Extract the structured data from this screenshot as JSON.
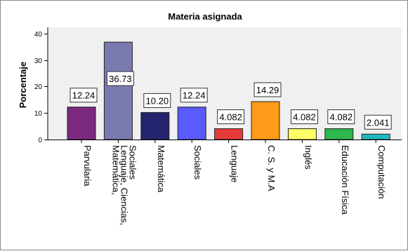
{
  "chart_data": {
    "type": "bar",
    "title": "Materia asignada",
    "xlabel": "",
    "ylabel": "Porcentaje",
    "ylim": [
      0,
      40
    ],
    "yticks": [
      0,
      10,
      20,
      30,
      40
    ],
    "grid": false,
    "legend": "none",
    "categories": [
      "Parvularia",
      "Matemática, Lenguaje, Ciencias, Sociales",
      "Matemática",
      "Sociales",
      "Lenguaje",
      "C. S. y M.A",
      "Inglés",
      "Educación Física",
      "Computación"
    ],
    "category_lines": [
      [
        "Parvularia"
      ],
      [
        "Matemática,",
        "Lenguaje, Ciencias,",
        "Sociales"
      ],
      [
        "Matemática"
      ],
      [
        "Sociales"
      ],
      [
        "Lenguaje"
      ],
      [
        "C. S. y M.A"
      ],
      [
        "Inglés"
      ],
      [
        "Educación Física"
      ],
      [
        "Computación"
      ]
    ],
    "values": [
      12.24,
      36.73,
      10.2,
      12.24,
      4.082,
      14.29,
      4.082,
      4.082,
      2.041
    ],
    "data_labels": [
      "12.24",
      "36.73",
      "10.20",
      "12.24",
      "4.082",
      "14.29",
      "4.082",
      "4.082",
      "2.041"
    ],
    "colors": [
      "#7b2a7e",
      "#7a7ab0",
      "#23236e",
      "#5a5aff",
      "#e63a3a",
      "#ff9a1a",
      "#ffff66",
      "#2cb84c",
      "#20b8c0"
    ],
    "plot_background": "#f0f0f0"
  }
}
